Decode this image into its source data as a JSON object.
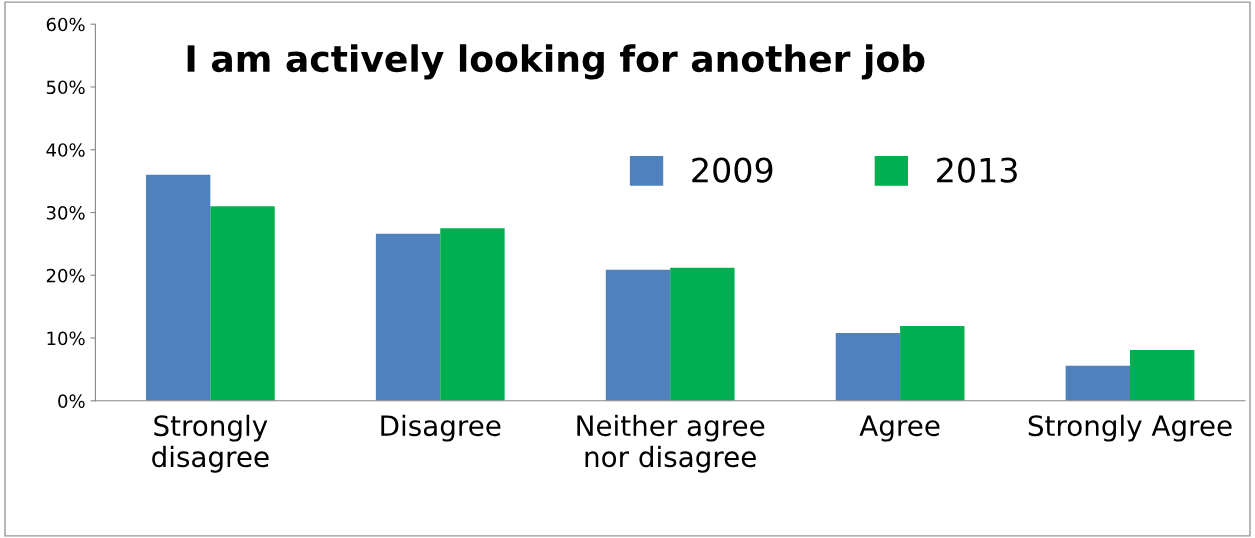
{
  "chart_data": {
    "type": "bar",
    "title": "I am actively looking for another job",
    "categories": [
      "Strongly\ndisagree",
      "Disagree",
      "Neither agree\nnor disagree",
      "Agree",
      "Strongly Agree"
    ],
    "series": [
      {
        "name": "2009",
        "color": "#4f81bd",
        "values": [
          36,
          26.6,
          20.9,
          10.8,
          5.6
        ]
      },
      {
        "name": "2013",
        "color": "#00b050",
        "values": [
          31,
          27.5,
          21.2,
          11.9,
          8.1
        ]
      }
    ],
    "ylim": [
      0,
      60
    ],
    "yticks": [
      {
        "value": 0,
        "label": "0%"
      },
      {
        "value": 10,
        "label": "10%"
      },
      {
        "value": 20,
        "label": "20%"
      },
      {
        "value": 30,
        "label": "30%"
      },
      {
        "value": 40,
        "label": "40%"
      },
      {
        "value": 50,
        "label": "50%"
      },
      {
        "value": 60,
        "label": "60%"
      }
    ],
    "grid": false,
    "legend": "top right"
  }
}
